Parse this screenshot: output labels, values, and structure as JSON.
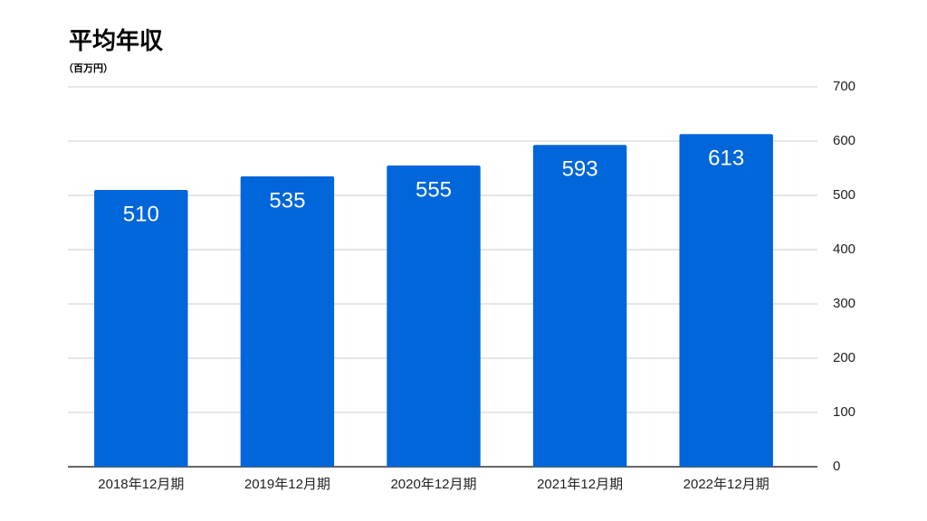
{
  "chart_data": {
    "type": "bar",
    "title": "平均年収",
    "subtitle": "（百万円）",
    "categories": [
      "2018年12月期",
      "2019年12月期",
      "2020年12月期",
      "2021年12月期",
      "2022年12月期"
    ],
    "values": [
      510,
      535,
      555,
      593,
      613
    ],
    "color": "#0066d9",
    "ylim": [
      0,
      700
    ],
    "yticks": [
      0,
      100,
      200,
      300,
      400,
      500,
      600,
      700
    ],
    "grid": true,
    "y_axis_side": "right"
  }
}
